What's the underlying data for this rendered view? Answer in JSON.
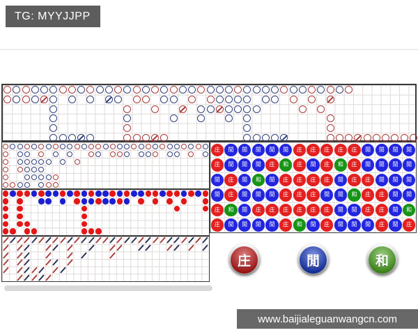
{
  "header": {
    "tg_label": "TG: MYYJJPP"
  },
  "footer": {
    "url": "www.baijialeguanwangcn.com"
  },
  "legend_buttons": [
    {
      "name": "banker",
      "label": "庄"
    },
    {
      "name": "player",
      "label": "閒"
    },
    {
      "name": "tie",
      "label": "和"
    }
  ],
  "colors": {
    "badge_bg": "#5d5d5d",
    "urlbar_bg": "#686868",
    "panel_border": "#3a3a3a",
    "grid_line": "#dedad8",
    "road_red": "#a93a3a",
    "road_blue": "#32417b",
    "solid_red": "#e51616",
    "solid_blue": "#1b1fd1",
    "bead_red": "#e32020",
    "bead_blue": "#2326df",
    "bead_green": "#169416",
    "tick_red": "#a94040",
    "tick_blue": "#2b3350",
    "button_red": "#c21717",
    "button_blue": "#1739c2",
    "button_green": "#4aa61e"
  },
  "roads": {
    "big_road": {
      "kind": "hollow",
      "cols": 45,
      "rows": [
        "rbrbbbrrbrbbrbrbrbrbbrbbbrbbbbrbbrbrbr.......",
        "rbrbxb.b.b.yb.rr.bb.r.rbbbb.bb.r.r.x.........",
        ".....b.......r..r..x.bbxbbbb....r.r..........",
        ".....b.......b....b..b..b.b........r.........",
        ".....b.......r............b........r.........",
        ".....bbbyb...rrrxr........bbbby....rrrxrrrrrr"
      ]
    },
    "big_eye_road": {
      "kind": "hollow",
      "cols": 29,
      "rows": [
        "rbbrbrbrbbrbrrbrbbrbrbrbbrbrb",
        "r.bb.r.b.b..rb.rrb.bbr.bb.r.b",
        "r.bbbbb.b.r..................",
        "r.rbbb.......................",
        "r..bbbbr.....................",
        "rrbb.brr....................."
      ]
    },
    "small_road": {
      "kind": "solid",
      "cols": 29,
      "rows": [
        "RBRRBRBBRBRBRBBRBRBBRRBRRBRBR",
        "R.R..BB.B.RBBRBBRB.R.R.R.R..R",
        "R.R........R............R...R",
        "R.R........R.................",
        "R.RR.......R.................",
        "RR.RR......RRR..............."
      ]
    },
    "cockroach_road": {
      "kind": "tick",
      "cols": 29,
      "rows": [
        "rbrrbrbrrbrbbrrbrbbrbrrbbrbrb",
        "r.rb..rb.r..b..rr..bb..rb.r.b",
        "r.rb..r..r.b...r.............",
        "r.rb..rb.r...................",
        "r.rbrb.rb....................",
        "..rbrbr......................"
      ]
    },
    "bead_plate": {
      "kind": "bead",
      "cols": 15,
      "labels": {
        "R": "庄",
        "B": "閒",
        "G": "和"
      },
      "rows": [
        "RBBBBBRRRRRBBBB",
        "RBBBRGRBRGRBBBB",
        "BRBGBRRRRBRRBBB",
        "BRBBBRRRBBGRRBB",
        "RGBRRRRRRBBRRBG",
        "RBBBBRGBRBBBRBR"
      ]
    }
  }
}
